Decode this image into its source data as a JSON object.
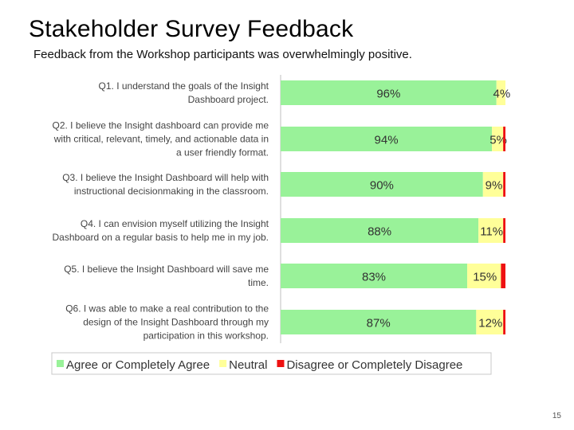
{
  "slide": {
    "title": "Stakeholder Survey Feedback",
    "subtitle": "Feedback from the Workshop participants was overwhelmingly positive.",
    "page_number": "15"
  },
  "chart_data": {
    "type": "bar",
    "orientation": "horizontal",
    "stacked": true,
    "percent": true,
    "grid": false,
    "legend_position": "bottom",
    "xlim": [
      0,
      100
    ],
    "categories": [
      [
        "Q1.  I understand the goals of the Insight",
        "Dashboard project."
      ],
      [
        "Q2.  I believe the Insight dashboard can provide me",
        "with critical, relevant, timely, and actionable data in",
        "a user friendly format."
      ],
      [
        "Q3.  I believe the Insight Dashboard will help with",
        "instructional decisionmaking in the classroom."
      ],
      [
        "Q4.  I can envision myself utilizing the Insight",
        "Dashboard on a regular basis to help me in my job."
      ],
      [
        "Q5.  I believe the Insight Dashboard will save me",
        "time."
      ],
      [
        "Q6.  I was able to make a real contribution to the",
        "design of the Insight Dashboard through my",
        "participation in this workshop."
      ]
    ],
    "series": [
      {
        "name": "Agree or Completely Agree",
        "color": "#99f299",
        "values": [
          96,
          94,
          90,
          88,
          83,
          87
        ],
        "labels": [
          "96%",
          "94%",
          "90%",
          "88%",
          "83%",
          "87%"
        ]
      },
      {
        "name": "Neutral",
        "color": "#ffff99",
        "values": [
          4,
          5,
          9,
          11,
          15,
          12
        ],
        "labels": [
          "4%",
          "5%",
          "9%",
          "11%",
          "15%",
          "12%"
        ]
      },
      {
        "name": "Disagree or Completely Disagree",
        "color": "#ee1111",
        "values": [
          0,
          1,
          1,
          1,
          2,
          1
        ],
        "labels": [
          "",
          "",
          "",
          "",
          "",
          ""
        ]
      }
    ]
  }
}
